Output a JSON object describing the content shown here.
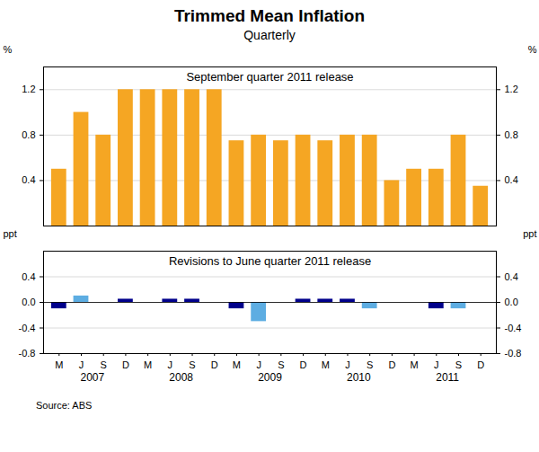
{
  "title": "Trimmed Mean Inflation",
  "subtitle": "Quarterly",
  "source": "Source: ABS",
  "chart_data": [
    {
      "type": "bar",
      "title": "September quarter 2011 release",
      "categories": [
        "M",
        "J",
        "S",
        "D",
        "M",
        "J",
        "S",
        "D",
        "M",
        "J",
        "S",
        "D",
        "M",
        "J",
        "S",
        "D",
        "M",
        "J",
        "S",
        "D"
      ],
      "values": [
        0.5,
        1.0,
        0.8,
        1.2,
        1.2,
        1.2,
        1.2,
        1.2,
        0.75,
        0.8,
        0.75,
        0.8,
        0.75,
        0.8,
        0.8,
        0.4,
        0.5,
        0.5,
        0.8,
        0.35
      ],
      "color": "#F5A623",
      "ylim": [
        0,
        1.4
      ],
      "yticks": [
        0.4,
        0.8,
        1.2
      ],
      "ylabel": "%",
      "y2lim": [
        0,
        1.4
      ],
      "y2ticks": [
        0.4,
        0.8,
        1.2
      ],
      "y2label": "%",
      "grid": true,
      "tick_labels": "y"
    },
    {
      "type": "bar",
      "title": "Revisions to June quarter 2011 release",
      "categories": [
        "M",
        "J",
        "S",
        "D",
        "M",
        "J",
        "S",
        "D",
        "M",
        "J",
        "S",
        "D",
        "M",
        "J",
        "S",
        "D",
        "M",
        "J",
        "S",
        "D"
      ],
      "x_group_labels": [
        "2007",
        "2008",
        "2009",
        "2010",
        "2011"
      ],
      "values": [
        -0.1,
        0.1,
        0.0,
        0.05,
        0.0,
        0.05,
        0.05,
        0.0,
        -0.1,
        -0.3,
        0.0,
        0.05,
        0.05,
        0.05,
        -0.1,
        0.0,
        0.0,
        -0.1,
        -0.1,
        0.0
      ],
      "colors": [
        "#00008B",
        "#5DADE2",
        "#00008B",
        "#00008B",
        "#00008B",
        "#00008B",
        "#00008B",
        "#00008B",
        "#00008B",
        "#5DADE2",
        "#00008B",
        "#00008B",
        "#00008B",
        "#00008B",
        "#5DADE2",
        "#00008B",
        "#00008B",
        "#00008B",
        "#5DADE2",
        "#00008B"
      ],
      "ylim": [
        -0.8,
        0.8
      ],
      "yticks": [
        -0.8,
        -0.4,
        {
          "value": 0,
          "label": "0.0"
        },
        0.4
      ],
      "ylabel": "ppt",
      "y2lim": [
        -0.8,
        0.8
      ],
      "y2ticks": [
        -0.8,
        -0.4,
        {
          "value": 0,
          "label": "0.0"
        },
        0.4
      ],
      "y2label": "ppt",
      "grid": true
    }
  ]
}
